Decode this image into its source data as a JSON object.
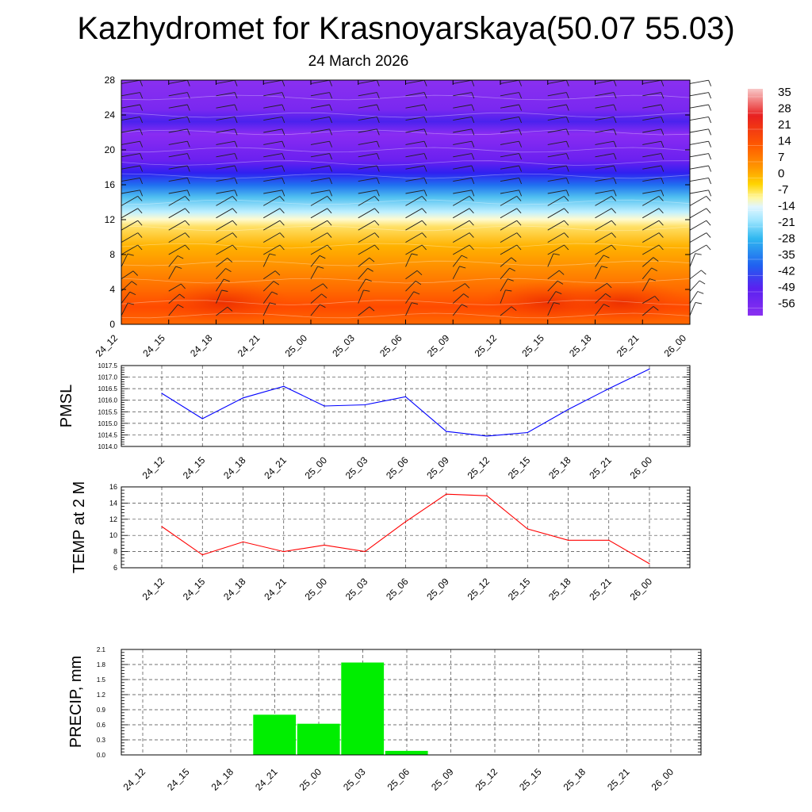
{
  "header": {
    "title": "Kazhydromet for Krasnoyarskaya(50.07 55.03)",
    "date": "24 March 2026"
  },
  "colorbar": {
    "labels": [
      "35",
      "28",
      "21",
      "14",
      "7",
      "0",
      "-7",
      "-14",
      "-21",
      "-28",
      "-35",
      "-42",
      "-49",
      "-56"
    ],
    "colors": [
      "#f8c8c8",
      "#e82020",
      "#ff5a00",
      "#ff9a00",
      "#ffd400",
      "#fff7a0",
      "#a0e6ff",
      "#30b8f0",
      "#2060f0",
      "#5a20f0",
      "#8a30f0"
    ]
  },
  "chart_data": [
    {
      "type": "heatmap",
      "title": "",
      "x": [
        "24_12",
        "24_15",
        "24_18",
        "24_21",
        "25_00",
        "25_03",
        "25_06",
        "25_09",
        "25_12",
        "25_15",
        "25_18",
        "25_21",
        "26_00"
      ],
      "ylim": [
        0,
        28
      ],
      "yticks": [
        "0",
        "4",
        "8",
        "12",
        "16",
        "20",
        "24",
        "28"
      ],
      "bands": [
        {
          "from": 0,
          "to": 4,
          "value": "14 to 21"
        },
        {
          "from": 4,
          "to": 8,
          "value": "7 to 14"
        },
        {
          "from": 8,
          "to": 12,
          "value": "0 to 7"
        },
        {
          "from": 12,
          "to": 16,
          "value": "-14 to -35"
        },
        {
          "from": 16,
          "to": 19,
          "value": "-42 to -56"
        },
        {
          "from": 19,
          "to": 28,
          "value": "-56"
        }
      ],
      "colorbar_range": [
        -56,
        35
      ],
      "overlay": "wind barbs"
    },
    {
      "type": "line",
      "ylabel": "PMSL",
      "x": [
        "24_12",
        "24_15",
        "24_18",
        "24_21",
        "25_00",
        "25_03",
        "25_06",
        "25_09",
        "25_12",
        "25_15",
        "25_18",
        "25_21",
        "26_00"
      ],
      "values": [
        1016.3,
        1015.2,
        1016.1,
        1016.6,
        1015.75,
        1015.8,
        1016.15,
        1014.65,
        1014.45,
        1014.6,
        1015.6,
        1016.5,
        1017.35
      ],
      "ylim": [
        1014.0,
        1017.5
      ],
      "yticks": [
        "1014.0",
        "1014.5",
        "1015.0",
        "1015.5",
        "1016.0",
        "1016.5",
        "1017.0",
        "1017.5"
      ],
      "grid": true,
      "color": "#0000ff"
    },
    {
      "type": "line",
      "ylabel": "TEMP at 2 M",
      "x": [
        "24_12",
        "24_15",
        "24_18",
        "24_21",
        "25_00",
        "25_03",
        "25_06",
        "25_09",
        "25_12",
        "25_15",
        "25_18",
        "25_21",
        "26_00"
      ],
      "values": [
        11.1,
        7.6,
        9.2,
        8.0,
        8.8,
        8.0,
        11.7,
        15.1,
        14.9,
        10.8,
        9.4,
        9.4,
        6.5
      ],
      "ylim": [
        6,
        16
      ],
      "yticks": [
        "6",
        "8",
        "10",
        "12",
        "14",
        "16"
      ],
      "grid": true,
      "color": "#ff0000"
    },
    {
      "type": "bar",
      "ylabel": "PRECIP, mm",
      "categories": [
        "24_12",
        "24_15",
        "24_18",
        "24_21",
        "25_00",
        "25_03",
        "25_06",
        "25_09",
        "25_12",
        "25_15",
        "25_18",
        "25_21",
        "26_00"
      ],
      "values": [
        0,
        0,
        0,
        0.8,
        0.62,
        1.84,
        0.08,
        0,
        0,
        0,
        0,
        0,
        0
      ],
      "ylim": [
        0,
        2.1
      ],
      "yticks": [
        "0.0",
        "0.3",
        "0.6",
        "0.9",
        "1.2",
        "1.5",
        "1.8",
        "2.1"
      ],
      "grid": true,
      "color": "#00ee00"
    }
  ]
}
